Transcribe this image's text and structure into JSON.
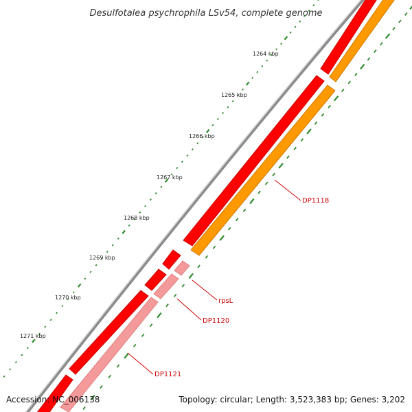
{
  "title": "Desulfotalea psychrophila LSv54, complete genome",
  "accession_text": "Accession: NC_006138",
  "topology_text": "Topology: circular; Length: 3,523,383 bp; Genes: 3,202",
  "colors": {
    "backbone": "#8c8c8c",
    "gene_red": "#ff0000",
    "gene_red_dark": "#cc0000",
    "gene_pink": "#f49a9a",
    "gene_orange": "#ff9900",
    "tick": "#2e8b2e",
    "label": "#cc0000"
  },
  "scale_labels": [
    "1264 kbp",
    "1265 kbp",
    "1266 kbp",
    "1267 kbp",
    "1268 kbp",
    "1269 kbp",
    "1270 kbp",
    "1271 kbp"
  ],
  "gene_labels": [
    "DP1118",
    "rpsL",
    "DP1120",
    "DP1121"
  ]
}
